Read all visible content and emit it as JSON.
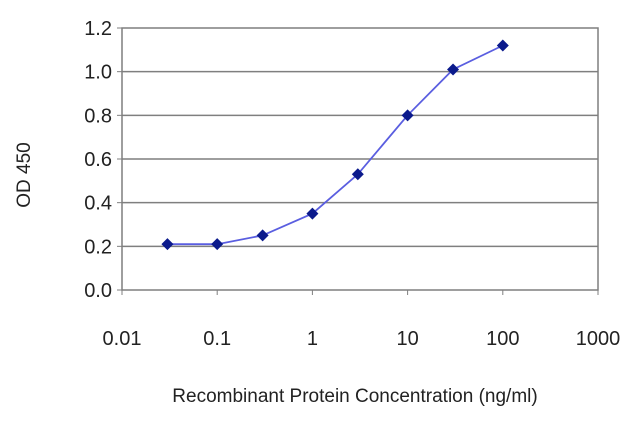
{
  "chart_data": {
    "type": "line",
    "xlabel": "Recombinant Protein Concentration (ng/ml)",
    "ylabel": "OD 450",
    "xscale": "log",
    "xlim": [
      0.01,
      1000
    ],
    "ylim": [
      0.0,
      1.2
    ],
    "grid": "horizontal",
    "x_ticks": [
      "0.01",
      "0.1",
      "1",
      "10",
      "100",
      "1000"
    ],
    "y_ticks": [
      "0.0",
      "0.2",
      "0.4",
      "0.6",
      "0.8",
      "1.0",
      "1.2"
    ],
    "series": [
      {
        "x": [
          0.03,
          0.1,
          0.3,
          1,
          3,
          10,
          30,
          100
        ],
        "y": [
          0.21,
          0.21,
          0.25,
          0.35,
          0.53,
          0.8,
          1.01,
          1.12
        ]
      }
    ],
    "colors": {
      "line": "#5a5ee0",
      "marker": "#0b1a8c",
      "grid": "#7f7f7f",
      "background": "#ffffff"
    }
  }
}
